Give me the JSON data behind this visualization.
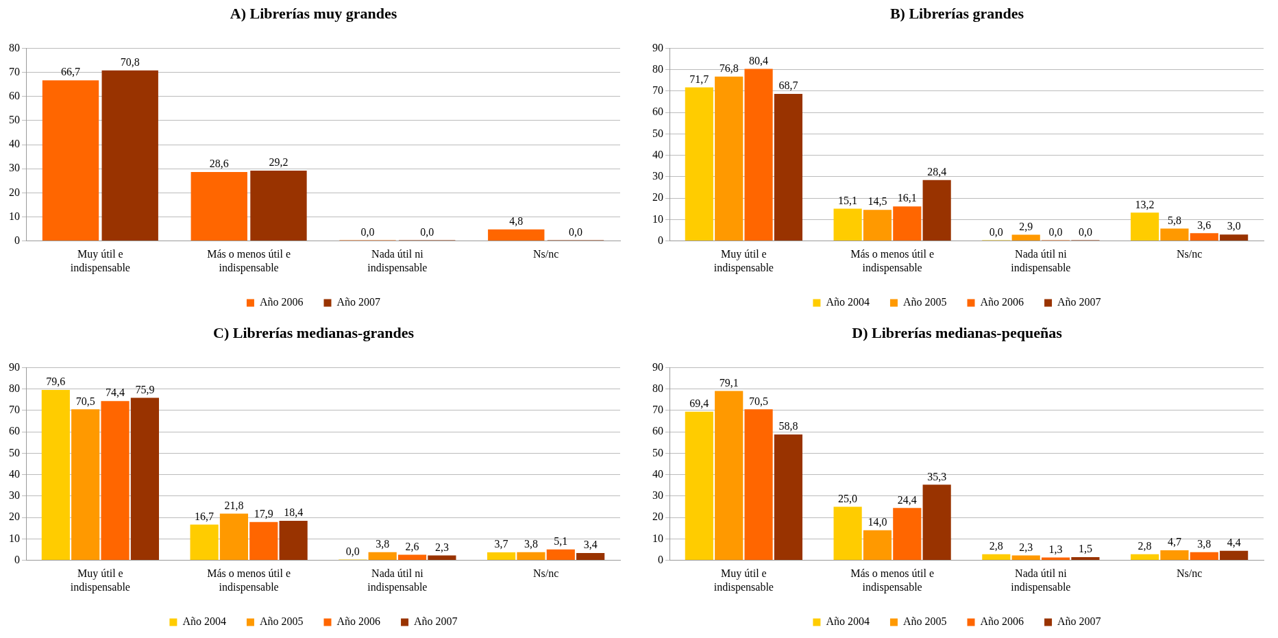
{
  "chart_data": [
    {
      "type": "bar",
      "title": "A) Librerías muy grandes",
      "categories": [
        "Muy útil e indispensable",
        "Más o menos útil e indispensable",
        "Nada útil ni indispensable",
        "Ns/nc"
      ],
      "series": [
        {
          "name": "Año 2006",
          "color": "#ff6600",
          "values": [
            66.7,
            28.6,
            0.0,
            4.8
          ],
          "value_labels": [
            "66,7",
            "28,6",
            "0,0",
            "4,8"
          ]
        },
        {
          "name": "Año 2007",
          "color": "#993300",
          "values": [
            70.8,
            29.2,
            0.0,
            0.0
          ],
          "value_labels": [
            "70,8",
            "29,2",
            "0,0",
            "0,0"
          ]
        }
      ],
      "ylim": [
        0,
        80
      ],
      "yticks": [
        0,
        10,
        20,
        30,
        40,
        50,
        60,
        70,
        80
      ],
      "grid": "y",
      "legend": "bottom"
    },
    {
      "type": "bar",
      "title": "B) Librerías grandes",
      "categories": [
        "Muy útil e indispensable",
        "Más o menos útil e indispensable",
        "Nada útil ni indispensable",
        "Ns/nc"
      ],
      "series": [
        {
          "name": "Año 2004",
          "color": "#ffcc00",
          "values": [
            71.7,
            15.1,
            0.0,
            13.2
          ],
          "value_labels": [
            "71,7",
            "15,1",
            "0,0",
            "13,2"
          ]
        },
        {
          "name": "Año 2005",
          "color": "#ff9900",
          "values": [
            76.8,
            14.5,
            2.9,
            5.8
          ],
          "value_labels": [
            "76,8",
            "14,5",
            "2,9",
            "5,8"
          ]
        },
        {
          "name": "Año 2006",
          "color": "#ff6600",
          "values": [
            80.4,
            16.1,
            0.0,
            3.6
          ],
          "value_labels": [
            "80,4",
            "16,1",
            "0,0",
            "3,6"
          ]
        },
        {
          "name": "Año 2007",
          "color": "#993300",
          "values": [
            68.7,
            28.4,
            0.0,
            3.0
          ],
          "value_labels": [
            "68,7",
            "28,4",
            "0,0",
            "3,0"
          ]
        }
      ],
      "ylim": [
        0,
        90
      ],
      "yticks": [
        0,
        10,
        20,
        30,
        40,
        50,
        60,
        70,
        80,
        90
      ],
      "grid": "y",
      "legend": "bottom"
    },
    {
      "type": "bar",
      "title": "C) Librerías medianas-grandes",
      "categories": [
        "Muy útil e indispensable",
        "Más o menos útil e indispensable",
        "Nada útil ni indispensable",
        "Ns/nc"
      ],
      "series": [
        {
          "name": "Año 2004",
          "color": "#ffcc00",
          "values": [
            79.6,
            16.7,
            0.0,
            3.7
          ],
          "value_labels": [
            "79,6",
            "16,7",
            "0,0",
            "3,7"
          ]
        },
        {
          "name": "Año 2005",
          "color": "#ff9900",
          "values": [
            70.5,
            21.8,
            3.8,
            3.8
          ],
          "value_labels": [
            "70,5",
            "21,8",
            "3,8",
            "3,8"
          ]
        },
        {
          "name": "Año 2006",
          "color": "#ff6600",
          "values": [
            74.4,
            17.9,
            2.6,
            5.1
          ],
          "value_labels": [
            "74,4",
            "17,9",
            "2,6",
            "5,1"
          ]
        },
        {
          "name": "Año 2007",
          "color": "#993300",
          "values": [
            75.9,
            18.4,
            2.3,
            3.4
          ],
          "value_labels": [
            "75,9",
            "18,4",
            "2,3",
            "3,4"
          ]
        }
      ],
      "ylim": [
        0,
        90
      ],
      "yticks": [
        0,
        10,
        20,
        30,
        40,
        50,
        60,
        70,
        80,
        90
      ],
      "grid": "y",
      "legend": "bottom"
    },
    {
      "type": "bar",
      "title": "D) Librerías medianas-pequeñas",
      "categories": [
        "Muy útil e indispensable",
        "Más o menos útil e indispensable",
        "Nada útil ni indispensable",
        "Ns/nc"
      ],
      "series": [
        {
          "name": "Año 2004",
          "color": "#ffcc00",
          "values": [
            69.4,
            25.0,
            2.8,
            2.8
          ],
          "value_labels": [
            "69,4",
            "25,0",
            "2,8",
            "2,8"
          ]
        },
        {
          "name": "Año 2005",
          "color": "#ff9900",
          "values": [
            79.1,
            14.0,
            2.3,
            4.7
          ],
          "value_labels": [
            "79,1",
            "14,0",
            "2,3",
            "4,7"
          ]
        },
        {
          "name": "Año 2006",
          "color": "#ff6600",
          "values": [
            70.5,
            24.4,
            1.3,
            3.8
          ],
          "value_labels": [
            "70,5",
            "24,4",
            "1,3",
            "3,8"
          ]
        },
        {
          "name": "Año 2007",
          "color": "#993300",
          "values": [
            58.8,
            35.3,
            1.5,
            4.4
          ],
          "value_labels": [
            "58,8",
            "35,3",
            "1,5",
            "4,4"
          ]
        }
      ],
      "ylim": [
        0,
        90
      ],
      "yticks": [
        0,
        10,
        20,
        30,
        40,
        50,
        60,
        70,
        80,
        90
      ],
      "grid": "y",
      "legend": "bottom"
    }
  ]
}
